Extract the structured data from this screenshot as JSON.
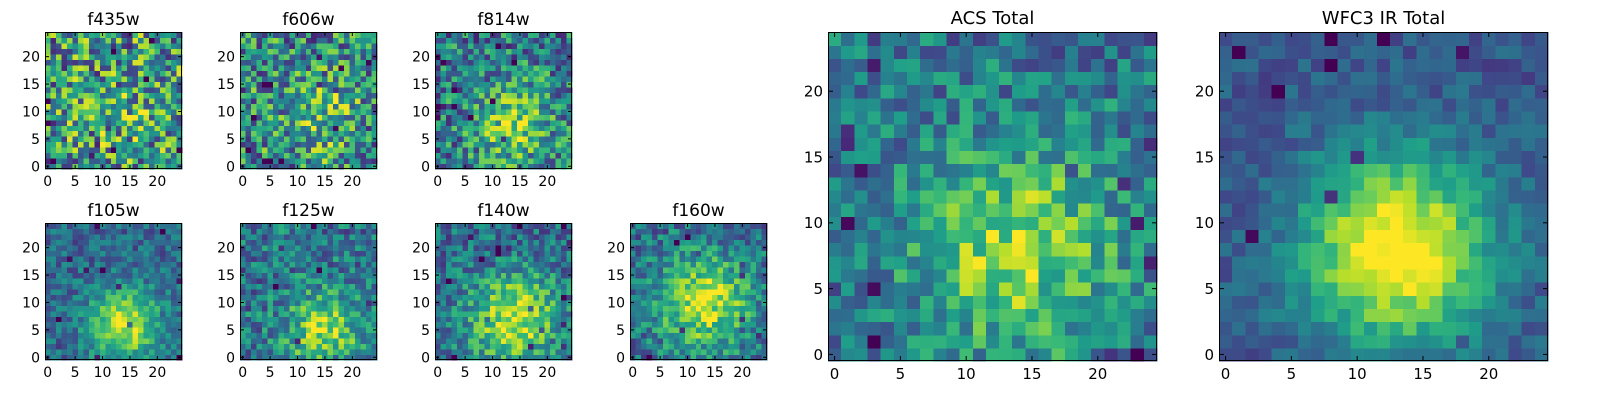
{
  "chart_data": [
    {
      "type": "heatmap",
      "title": "f435w",
      "colormap": "viridis",
      "grid": false,
      "xlim": [
        -0.5,
        24.5
      ],
      "ylim": [
        -0.5,
        24.5
      ],
      "x_ticks": [
        0,
        5,
        10,
        15,
        20
      ],
      "y_ticks": [
        0,
        5,
        10,
        15,
        20
      ],
      "rows": 25,
      "cols": 25,
      "intensity_peak_xy": [
        14,
        10
      ],
      "intensity_spread": 6.0,
      "contrast": 0.08,
      "noise_level": 0.85,
      "seed": 11
    },
    {
      "type": "heatmap",
      "title": "f606w",
      "colormap": "viridis",
      "grid": false,
      "xlim": [
        -0.5,
        24.5
      ],
      "ylim": [
        -0.5,
        24.5
      ],
      "x_ticks": [
        0,
        5,
        10,
        15,
        20
      ],
      "y_ticks": [
        0,
        5,
        10,
        15,
        20
      ],
      "rows": 25,
      "cols": 25,
      "intensity_peak_xy": [
        14,
        9
      ],
      "intensity_spread": 5.5,
      "contrast": 0.22,
      "noise_level": 0.75,
      "seed": 23
    },
    {
      "type": "heatmap",
      "title": "f814w",
      "colormap": "viridis",
      "grid": false,
      "xlim": [
        -0.5,
        24.5
      ],
      "ylim": [
        -0.5,
        24.5
      ],
      "x_ticks": [
        0,
        5,
        10,
        15,
        20
      ],
      "y_ticks": [
        0,
        5,
        10,
        15,
        20
      ],
      "rows": 25,
      "cols": 25,
      "intensity_peak_xy": [
        14,
        8
      ],
      "intensity_spread": 5.0,
      "contrast": 0.38,
      "noise_level": 0.65,
      "seed": 37
    },
    {
      "type": "heatmap",
      "title": "f105w",
      "colormap": "viridis",
      "grid": false,
      "xlim": [
        -0.5,
        24.5
      ],
      "ylim": [
        -0.5,
        24.5
      ],
      "x_ticks": [
        0,
        5,
        10,
        15,
        20
      ],
      "y_ticks": [
        0,
        5,
        10,
        15,
        20
      ],
      "rows": 25,
      "cols": 25,
      "intensity_peak_xy": [
        14,
        6
      ],
      "intensity_spread": 4.5,
      "contrast": 0.6,
      "noise_level": 0.35,
      "seed": 41
    },
    {
      "type": "heatmap",
      "title": "f125w",
      "colormap": "viridis",
      "grid": false,
      "xlim": [
        -0.5,
        24.5
      ],
      "ylim": [
        -0.5,
        24.5
      ],
      "x_ticks": [
        0,
        5,
        10,
        15,
        20
      ],
      "y_ticks": [
        0,
        5,
        10,
        15,
        20
      ],
      "rows": 25,
      "cols": 25,
      "intensity_peak_xy": [
        15,
        5
      ],
      "intensity_spread": 5.0,
      "contrast": 0.45,
      "noise_level": 0.5,
      "seed": 53
    },
    {
      "type": "heatmap",
      "title": "f140w",
      "colormap": "viridis",
      "grid": false,
      "xlim": [
        -0.5,
        24.5
      ],
      "ylim": [
        -0.5,
        24.5
      ],
      "x_ticks": [
        0,
        5,
        10,
        15,
        20
      ],
      "y_ticks": [
        0,
        5,
        10,
        15,
        20
      ],
      "rows": 25,
      "cols": 25,
      "intensity_peak_xy": [
        14,
        7
      ],
      "intensity_spread": 6.0,
      "contrast": 0.55,
      "noise_level": 0.45,
      "seed": 67
    },
    {
      "type": "heatmap",
      "title": "f160w",
      "colormap": "viridis",
      "grid": false,
      "xlim": [
        -0.5,
        24.5
      ],
      "ylim": [
        -0.5,
        24.5
      ],
      "x_ticks": [
        0,
        5,
        10,
        15,
        20
      ],
      "y_ticks": [
        0,
        5,
        10,
        15,
        20
      ],
      "rows": 25,
      "cols": 25,
      "intensity_peak_xy": [
        13,
        10
      ],
      "intensity_spread": 6.0,
      "contrast": 0.55,
      "noise_level": 0.45,
      "seed": 79
    },
    {
      "type": "heatmap",
      "title": "ACS Total",
      "colormap": "viridis",
      "grid": false,
      "xlim": [
        -0.5,
        24.5
      ],
      "ylim": [
        -0.5,
        24.5
      ],
      "x_ticks": [
        0,
        5,
        10,
        15,
        20
      ],
      "y_ticks": [
        0,
        5,
        10,
        15,
        20
      ],
      "rows": 25,
      "cols": 25,
      "intensity_peak_xy": [
        14,
        8
      ],
      "intensity_spread": 5.5,
      "contrast": 0.45,
      "noise_level": 0.45,
      "seed": 83
    },
    {
      "type": "heatmap",
      "title": "WFC3 IR Total",
      "colormap": "viridis",
      "grid": false,
      "xlim": [
        -0.5,
        24.5
      ],
      "ylim": [
        -0.5,
        24.5
      ],
      "x_ticks": [
        0,
        5,
        10,
        15,
        20
      ],
      "y_ticks": [
        0,
        5,
        10,
        15,
        20
      ],
      "rows": 25,
      "cols": 25,
      "intensity_peak_xy": [
        13,
        8
      ],
      "intensity_spread": 5.0,
      "contrast": 0.8,
      "noise_level": 0.22,
      "seed": 97
    }
  ]
}
